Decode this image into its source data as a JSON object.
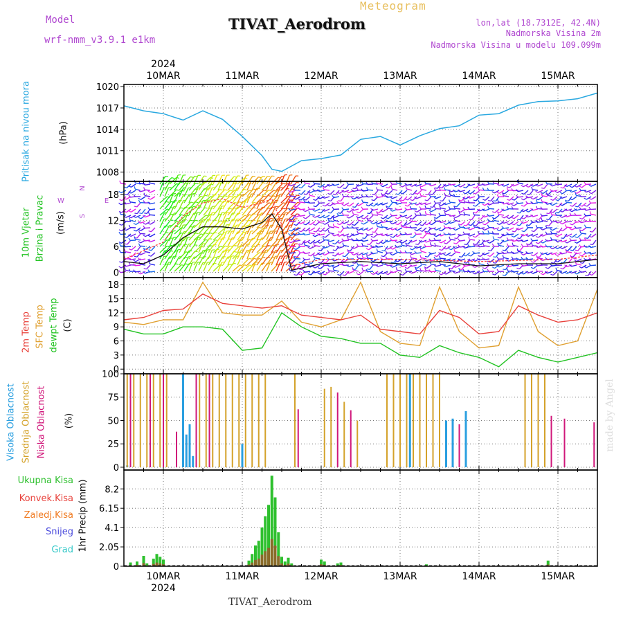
{
  "header": {
    "model_label": "Model",
    "model_value": "wrf-nmm_v3.9.1 e1km",
    "app_title": "Meteogram",
    "station_title": "TIVAT_Aerodrom",
    "lonlat": "lon,lat (18.7312E, 42.4N)",
    "elevation": "Nadmorska Visina 2m",
    "model_elevation": "Nadmorska Visina u modelu 109.099m",
    "watermark": "made by Angel"
  },
  "footer": {
    "station": "TIVAT_Aerodrom"
  },
  "colors": {
    "pressure": "#29a8e0",
    "temp2m": "#e8403a",
    "sfc": "#e0a030",
    "dew": "#22c322",
    "high_cloud": "#2a9fe0",
    "mid_cloud": "#d4a22a",
    "low_cloud": "#d0177a",
    "precip_total": "#2ec02e",
    "precip_conv": "#e8403a",
    "precip_frozen": "#f07a20",
    "snow": "#4b4bdc",
    "hail": "#35c8c8",
    "purple_text": "#b048d0",
    "gold_text": "#e8c060"
  },
  "chart_data": [
    {
      "type": "line",
      "panel": "pressure",
      "year": "2024",
      "dates": [
        "10MAR",
        "11MAR",
        "12MAR",
        "13MAR",
        "14MAR",
        "15MAR"
      ],
      "date_range": [
        "2024-03-09T12:00",
        "2024-03-15T12:00"
      ],
      "ylabel": [
        "Pritisak na nivou mora",
        "(hPa)"
      ],
      "yticks": [
        1008,
        1011,
        1014,
        1017,
        1020
      ],
      "ylim": [
        1006.7,
        1020.3
      ],
      "grid": true,
      "series": [
        {
          "x": [
            "2024-03-09T12",
            "2024-03-09T18",
            "2024-03-10T00",
            "2024-03-10T06",
            "2024-03-10T12",
            "2024-03-10T18",
            "2024-03-11T00",
            "2024-03-11T06",
            "2024-03-11T09",
            "2024-03-11T12",
            "2024-03-11T18",
            "2024-03-12T00",
            "2024-03-12T06",
            "2024-03-12T12",
            "2024-03-12T18",
            "2024-03-13T00",
            "2024-03-13T06",
            "2024-03-13T12",
            "2024-03-13T18",
            "2024-03-14T00",
            "2024-03-14T06",
            "2024-03-14T12",
            "2024-03-14T18",
            "2024-03-15T00",
            "2024-03-15T06",
            "2024-03-15T12"
          ],
          "y": [
            1017.3,
            1016.6,
            1016.2,
            1015.3,
            1016.6,
            1015.4,
            1013.0,
            1010.3,
            1008.4,
            1008.1,
            1009.6,
            1009.9,
            1010.4,
            1012.6,
            1013.0,
            1011.8,
            1013.1,
            1014.1,
            1014.5,
            1016.0,
            1016.2,
            1017.4,
            1017.9,
            1018.0,
            1018.3,
            1019.1
          ]
        }
      ]
    },
    {
      "type": "line",
      "panel": "wind",
      "ylabel": [
        "10m Vjetar",
        "Brzina i Pravac",
        "(m/s)"
      ],
      "compass": [
        "N",
        "S",
        "E",
        "W"
      ],
      "yticks": [
        0,
        6,
        12,
        18
      ],
      "ylim": [
        -1.2,
        21.0
      ],
      "grid": true,
      "series": [
        {
          "name": "speed",
          "x": [
            "2024-03-09T12",
            "2024-03-09T18",
            "2024-03-10T00",
            "2024-03-10T06",
            "2024-03-10T12",
            "2024-03-10T18",
            "2024-03-11T00",
            "2024-03-11T06",
            "2024-03-11T09",
            "2024-03-11T12",
            "2024-03-11T15",
            "2024-03-12T00",
            "2024-03-12T12",
            "2024-03-13T00",
            "2024-03-13T12",
            "2024-03-14T00",
            "2024-03-14T12",
            "2024-03-15T00",
            "2024-03-15T12"
          ],
          "y": [
            2.5,
            2.0,
            4.0,
            8.0,
            10.5,
            10.5,
            10.0,
            11.5,
            13.5,
            10.0,
            0.5,
            2.0,
            2.5,
            2.0,
            2.5,
            1.5,
            2.0,
            2.0,
            3.0
          ]
        },
        {
          "name": "gust",
          "x": [
            "2024-03-09T12",
            "2024-03-10T00",
            "2024-03-10T06",
            "2024-03-10T12",
            "2024-03-10T18",
            "2024-03-11T00",
            "2024-03-11T06",
            "2024-03-11T09",
            "2024-03-11T12",
            "2024-03-11T15",
            "2024-03-12T00",
            "2024-03-13T00",
            "2024-03-14T00",
            "2024-03-15T00",
            "2024-03-15T12"
          ],
          "y": [
            3.0,
            7.0,
            13.0,
            16.0,
            17.0,
            15.0,
            16.0,
            17.0,
            11.0,
            1.5,
            3.0,
            3.0,
            2.5,
            3.0,
            4.0
          ]
        }
      ]
    },
    {
      "type": "line",
      "panel": "temperature",
      "ylabel": [
        "2m Temp",
        "SFC Temp",
        "dewpt Temp",
        "(C)"
      ],
      "yticks": [
        0,
        3,
        6,
        9,
        12,
        15,
        18
      ],
      "ylim": [
        -1.0,
        19.5
      ],
      "grid": true,
      "series": [
        {
          "name": "2m Temp",
          "x": [
            "2024-03-09T12",
            "2024-03-09T18",
            "2024-03-10T00",
            "2024-03-10T06",
            "2024-03-10T12",
            "2024-03-10T18",
            "2024-03-11T00",
            "2024-03-11T06",
            "2024-03-11T12",
            "2024-03-11T18",
            "2024-03-12T00",
            "2024-03-12T06",
            "2024-03-12T12",
            "2024-03-12T18",
            "2024-03-13T00",
            "2024-03-13T06",
            "2024-03-13T12",
            "2024-03-13T18",
            "2024-03-14T00",
            "2024-03-14T06",
            "2024-03-14T12",
            "2024-03-14T18",
            "2024-03-15T00",
            "2024-03-15T06",
            "2024-03-15T12"
          ],
          "y": [
            10.5,
            11.0,
            12.5,
            12.8,
            16.0,
            14.0,
            13.5,
            13.0,
            13.5,
            11.5,
            11.0,
            10.5,
            11.5,
            8.5,
            8.0,
            7.5,
            12.5,
            11.0,
            7.5,
            8.0,
            13.5,
            11.5,
            10.0,
            10.5,
            12.0
          ]
        },
        {
          "name": "SFC Temp",
          "x": [
            "2024-03-09T12",
            "2024-03-09T18",
            "2024-03-10T00",
            "2024-03-10T06",
            "2024-03-10T12",
            "2024-03-10T18",
            "2024-03-11T00",
            "2024-03-11T06",
            "2024-03-11T12",
            "2024-03-11T18",
            "2024-03-12T00",
            "2024-03-12T06",
            "2024-03-12T12",
            "2024-03-12T18",
            "2024-03-13T00",
            "2024-03-13T06",
            "2024-03-13T12",
            "2024-03-13T18",
            "2024-03-14T00",
            "2024-03-14T06",
            "2024-03-14T12",
            "2024-03-14T18",
            "2024-03-15T00",
            "2024-03-15T06",
            "2024-03-15T12"
          ],
          "y": [
            10.0,
            9.5,
            10.5,
            10.5,
            18.5,
            12.0,
            11.5,
            11.5,
            14.5,
            10.0,
            9.0,
            10.5,
            18.5,
            8.0,
            5.5,
            5.0,
            17.5,
            8.0,
            4.5,
            5.0,
            17.5,
            8.0,
            5.0,
            6.0,
            17.0
          ]
        },
        {
          "name": "dewpt Temp",
          "x": [
            "2024-03-09T12",
            "2024-03-09T18",
            "2024-03-10T00",
            "2024-03-10T06",
            "2024-03-10T12",
            "2024-03-10T18",
            "2024-03-11T00",
            "2024-03-11T06",
            "2024-03-11T12",
            "2024-03-11T18",
            "2024-03-12T00",
            "2024-03-12T06",
            "2024-03-12T12",
            "2024-03-12T18",
            "2024-03-13T00",
            "2024-03-13T06",
            "2024-03-13T12",
            "2024-03-13T18",
            "2024-03-14T00",
            "2024-03-14T06",
            "2024-03-14T12",
            "2024-03-14T18",
            "2024-03-15T00",
            "2024-03-15T06",
            "2024-03-15T12"
          ],
          "y": [
            8.5,
            7.5,
            7.5,
            9.0,
            9.0,
            8.5,
            4.0,
            4.5,
            12.0,
            9.0,
            7.0,
            6.5,
            5.5,
            5.5,
            3.0,
            2.5,
            5.0,
            3.5,
            2.5,
            0.5,
            4.0,
            2.5,
            1.5,
            2.5,
            3.5
          ]
        }
      ]
    },
    {
      "type": "bar",
      "panel": "clouds",
      "ylabel": [
        "Visoka Oblacnost",
        "Srednja Oblacnost",
        "Niska Oblacnost",
        "(%)"
      ],
      "yticks": [
        0,
        25,
        50,
        75,
        100
      ],
      "ylim": [
        -3,
        100
      ],
      "grid": true,
      "series": [
        {
          "name": "Visoka Oblacnost",
          "x": [
            "2024-03-09T13",
            "2024-03-10T06",
            "2024-03-10T07",
            "2024-03-10T08",
            "2024-03-10T09",
            "2024-03-11T00",
            "2024-03-13T03",
            "2024-03-13T14",
            "2024-03-13T16",
            "2024-03-13T20"
          ],
          "y": [
            2,
            100,
            35,
            46,
            12,
            25,
            100,
            50,
            52,
            60
          ]
        },
        {
          "name": "Srednja Oblacnost",
          "x": [
            "2024-03-09T13",
            "2024-03-09T15",
            "2024-03-09T17",
            "2024-03-09T19",
            "2024-03-09T21",
            "2024-03-09T23",
            "2024-03-10T01",
            "2024-03-10T11",
            "2024-03-10T13",
            "2024-03-10T15",
            "2024-03-10T17",
            "2024-03-10T19",
            "2024-03-10T21",
            "2024-03-10T23",
            "2024-03-11T01",
            "2024-03-11T03",
            "2024-03-11T05",
            "2024-03-11T07",
            "2024-03-11T16",
            "2024-03-12T01",
            "2024-03-12T03",
            "2024-03-12T07",
            "2024-03-12T11",
            "2024-03-12T20",
            "2024-03-12T22",
            "2024-03-13T00",
            "2024-03-13T02",
            "2024-03-13T04",
            "2024-03-13T06",
            "2024-03-13T08",
            "2024-03-13T10",
            "2024-03-13T12",
            "2024-03-14T14",
            "2024-03-14T16",
            "2024-03-14T18",
            "2024-03-14T20"
          ],
          "y": [
            100,
            100,
            100,
            100,
            100,
            100,
            100,
            100,
            100,
            100,
            100,
            100,
            100,
            100,
            100,
            100,
            100,
            100,
            100,
            84,
            86,
            70,
            50,
            100,
            100,
            100,
            100,
            100,
            100,
            100,
            100,
            100,
            100,
            100,
            100,
            100
          ]
        },
        {
          "name": "Niska Oblacnost",
          "x": [
            "2024-03-09T14",
            "2024-03-09T20",
            "2024-03-10T00",
            "2024-03-10T04",
            "2024-03-10T10",
            "2024-03-10T14",
            "2024-03-11T17",
            "2024-03-12T05",
            "2024-03-12T09",
            "2024-03-13T18",
            "2024-03-14T22",
            "2024-03-15T02",
            "2024-03-15T11"
          ],
          "y": [
            100,
            100,
            100,
            38,
            100,
            100,
            62,
            80,
            61,
            46,
            55,
            52,
            48
          ]
        }
      ]
    },
    {
      "type": "bar",
      "panel": "precipitation",
      "ylabel": "1hr Precip (mm)",
      "legend": [
        "Ukupna Kisa",
        "Konvek.Kisa",
        "Zaledj.Kisa",
        "Snijeg",
        "Grad"
      ],
      "yticks": [
        0,
        2.05,
        4.1,
        6.15,
        8.2
      ],
      "ylim": [
        0,
        10.2
      ],
      "grid": true,
      "series": [
        {
          "name": "Ukupna Kisa",
          "x": [
            "2024-03-09T14",
            "2024-03-09T16",
            "2024-03-09T18",
            "2024-03-09T19",
            "2024-03-09T21",
            "2024-03-09T22",
            "2024-03-09T23",
            "2024-03-10T00",
            "2024-03-11T02",
            "2024-03-11T03",
            "2024-03-11T04",
            "2024-03-11T05",
            "2024-03-11T06",
            "2024-03-11T07",
            "2024-03-11T08",
            "2024-03-11T09",
            "2024-03-11T10",
            "2024-03-11T11",
            "2024-03-11T12",
            "2024-03-11T13",
            "2024-03-11T14",
            "2024-03-11T15",
            "2024-03-12T00",
            "2024-03-12T01",
            "2024-03-12T05",
            "2024-03-12T06",
            "2024-03-13T08",
            "2024-03-14T21"
          ],
          "y": [
            0.4,
            0.5,
            1.1,
            0.3,
            0.8,
            1.3,
            1.0,
            0.7,
            0.6,
            1.3,
            2.2,
            2.7,
            4.1,
            5.3,
            6.5,
            9.6,
            7.3,
            3.6,
            1.0,
            0.5,
            0.9,
            0.3,
            0.7,
            0.5,
            0.3,
            0.4,
            0.2,
            0.6
          ]
        }
      ]
    }
  ]
}
